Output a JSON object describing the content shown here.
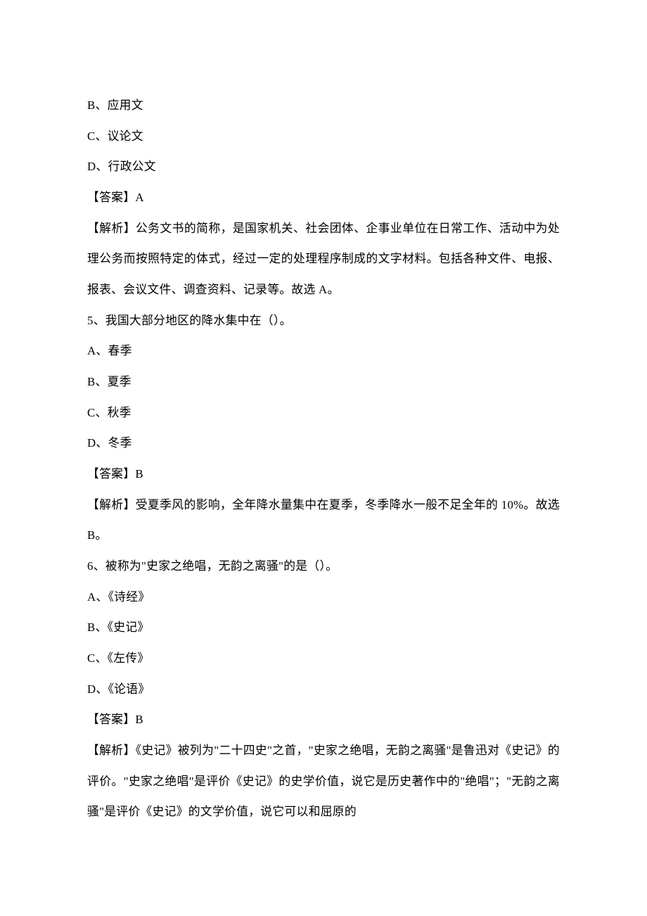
{
  "q4": {
    "optB": "B、应用文",
    "optC": "C、议论文",
    "optD": "D、行政公文",
    "answer": "【答案】A",
    "analysis": "【解析】公务文书的简称，是国家机关、社会团体、企事业单位在日常工作、活动中为处理公务而按照特定的体式，经过一定的处理程序制成的文字材料。包括各种文件、电报、报表、会议文件、调查资料、记录等。故选 A。"
  },
  "q5": {
    "stem": "5、我国大部分地区的降水集中在（）。",
    "optA": "A、春季",
    "optB": "B、夏季",
    "optC": "C、秋季",
    "optD": "D、冬季",
    "answer": "【答案】B",
    "analysis": "【解析】受夏季风的影响，全年降水量集中在夏季，冬季降水一般不足全年的 10%。故选 B。"
  },
  "q6": {
    "stem": "6、被称为\"史家之绝唱，无韵之离骚\"的是（）。",
    "optA": "A、《诗经》",
    "optB": "B、《史记》",
    "optC": "C、《左传》",
    "optD": "D、《论语》",
    "answer": "【答案】B",
    "analysis": "【解析】《史记》被列为\"二十四史\"之首，\"史家之绝唱，无韵之离骚\"是鲁迅对《史记》的评价。\"史家之绝唱\"是评价《史记》的史学价值，说它是历史著作中的\"绝唱\"；\"无韵之离骚\"是评价《史记》的文学价值，说它可以和屈原的"
  }
}
